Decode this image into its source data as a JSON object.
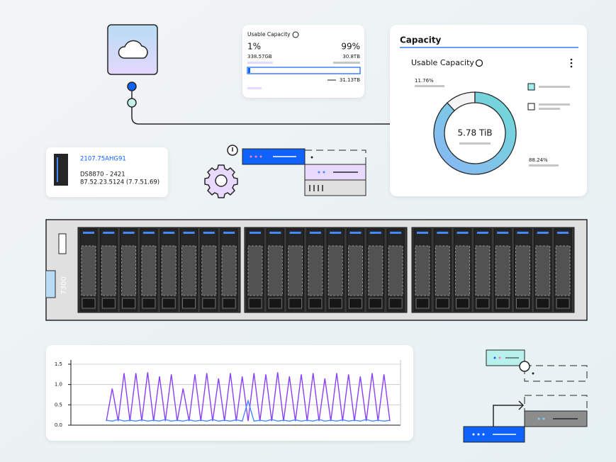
{
  "storage_card": {
    "title": "Usable Capacity",
    "used_percent": "1%",
    "free_percent": "99%",
    "used_amount": "338.57GB",
    "free_amount": "30.8TB",
    "total": "31.13TB"
  },
  "capacity_card": {
    "title": "Capacity",
    "subtitle": "Usable Capacity",
    "donut": {
      "values": [
        11.76,
        88.24
      ],
      "value_labels": [
        "11.76%",
        "88.24%"
      ],
      "center_label": "5.78 TiB"
    }
  },
  "system_card": {
    "serial": "2107.75AHG91",
    "model": "DS8870 - 2421",
    "address": "87.52.23.5124 (7.7.51.69)"
  },
  "chassis_label": "7300",
  "chart_data": {
    "type": "line",
    "ylim": [
      0,
      1.5
    ],
    "yticks": [
      {
        "value": 0,
        "label": "0.0"
      },
      0.5,
      {
        "value": 1,
        "label": "1.0"
      },
      1.5
    ],
    "grid": true,
    "series": [
      {
        "color": "#8a3ffc",
        "values": [
          0.1,
          0.9,
          0.1,
          1.28,
          0.1,
          1.28,
          0.1,
          1.3,
          0.1,
          1.2,
          0.1,
          1.25,
          0.1,
          0.9,
          0.1,
          1.25,
          0.1,
          1.28,
          0.1,
          1.15,
          0.1,
          1.28,
          0.1,
          1.2,
          0.1,
          1.28,
          0.1,
          1.25,
          0.1,
          1.3,
          0.1,
          1.2,
          0.1,
          1.25,
          0.1,
          1.28,
          0.1,
          1.15,
          0.1,
          1.28,
          0.1,
          1.25,
          0.1,
          1.2,
          0.1,
          1.28,
          0.1,
          1.25,
          0.1
        ]
      },
      {
        "color": "#4589ff",
        "values": [
          0.12,
          0.1,
          0.14,
          0.1,
          0.12,
          0.1,
          0.13,
          0.1,
          0.12,
          0.1,
          0.14,
          0.1,
          0.12,
          0.1,
          0.13,
          0.1,
          0.12,
          0.1,
          0.14,
          0.1,
          0.12,
          0.1,
          0.13,
          0.1,
          0.6,
          0.1,
          0.12,
          0.1,
          0.14,
          0.1,
          0.12,
          0.1,
          0.13,
          0.1,
          0.12,
          0.1,
          0.14,
          0.1,
          0.12,
          0.1,
          0.13,
          0.1,
          0.12,
          0.1,
          0.14,
          0.1,
          0.12,
          0.1,
          0.12
        ]
      }
    ]
  }
}
